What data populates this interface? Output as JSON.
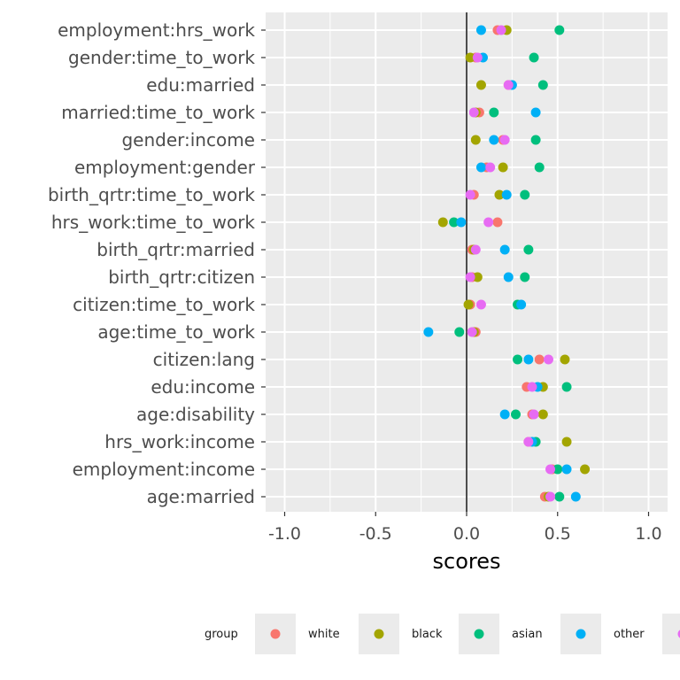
{
  "chart_data": {
    "type": "scatter",
    "orientation": "horizontal-dot-plot",
    "xlabel": "scores",
    "ylabel": "",
    "xlim": [
      -1.1,
      1.1
    ],
    "x_ticks": [
      -1.0,
      -0.5,
      0.0,
      0.5,
      1.0
    ],
    "x_tick_labels": [
      "-1.0",
      "-0.5",
      "0.0",
      "0.5",
      "1.0"
    ],
    "reference_line_x": 0,
    "grid": true,
    "legend": {
      "title": "group",
      "position": "bottom"
    },
    "categories": [
      "employment:hrs_work",
      "gender:time_to_work",
      "edu:married",
      "married:time_to_work",
      "gender:income",
      "employment:gender",
      "birth_qrtr:time_to_work",
      "hrs_work:time_to_work",
      "birth_qrtr:married",
      "birth_qrtr:citizen",
      "citizen:time_to_work",
      "age:time_to_work",
      "citizen:lang",
      "edu:income",
      "age:disability",
      "hrs_work:income",
      "employment:income",
      "age:married"
    ],
    "series": [
      {
        "name": "white",
        "color": "#F8766D",
        "values": [
          0.17,
          0.05,
          0.23,
          0.07,
          0.2,
          0.11,
          0.04,
          0.17,
          0.03,
          0.03,
          0.02,
          0.05,
          0.4,
          0.33,
          0.36,
          0.34,
          0.47,
          0.43
        ]
      },
      {
        "name": "black",
        "color": "#A3A500",
        "values": [
          0.22,
          0.02,
          0.08,
          0.05,
          0.05,
          0.2,
          0.18,
          -0.13,
          0.04,
          0.06,
          0.01,
          0.04,
          0.54,
          0.42,
          0.42,
          0.55,
          0.65,
          0.45
        ]
      },
      {
        "name": "asian",
        "color": "#00BF7D",
        "values": [
          0.51,
          0.37,
          0.42,
          0.15,
          0.38,
          0.4,
          0.32,
          -0.07,
          0.34,
          0.32,
          0.28,
          -0.04,
          0.28,
          0.55,
          0.27,
          0.38,
          0.5,
          0.51
        ]
      },
      {
        "name": "other",
        "color": "#00B0F6",
        "values": [
          0.08,
          0.09,
          0.25,
          0.38,
          0.15,
          0.08,
          0.22,
          -0.03,
          0.21,
          0.23,
          0.3,
          -0.21,
          0.34,
          0.39,
          0.21,
          0.36,
          0.55,
          0.6
        ]
      },
      {
        "name": "",
        "color": "#E76BF3",
        "values": [
          0.19,
          0.06,
          0.23,
          0.04,
          0.21,
          0.13,
          0.02,
          0.12,
          0.05,
          0.02,
          0.08,
          0.03,
          0.45,
          0.36,
          0.37,
          0.34,
          0.46,
          0.46
        ]
      }
    ]
  }
}
